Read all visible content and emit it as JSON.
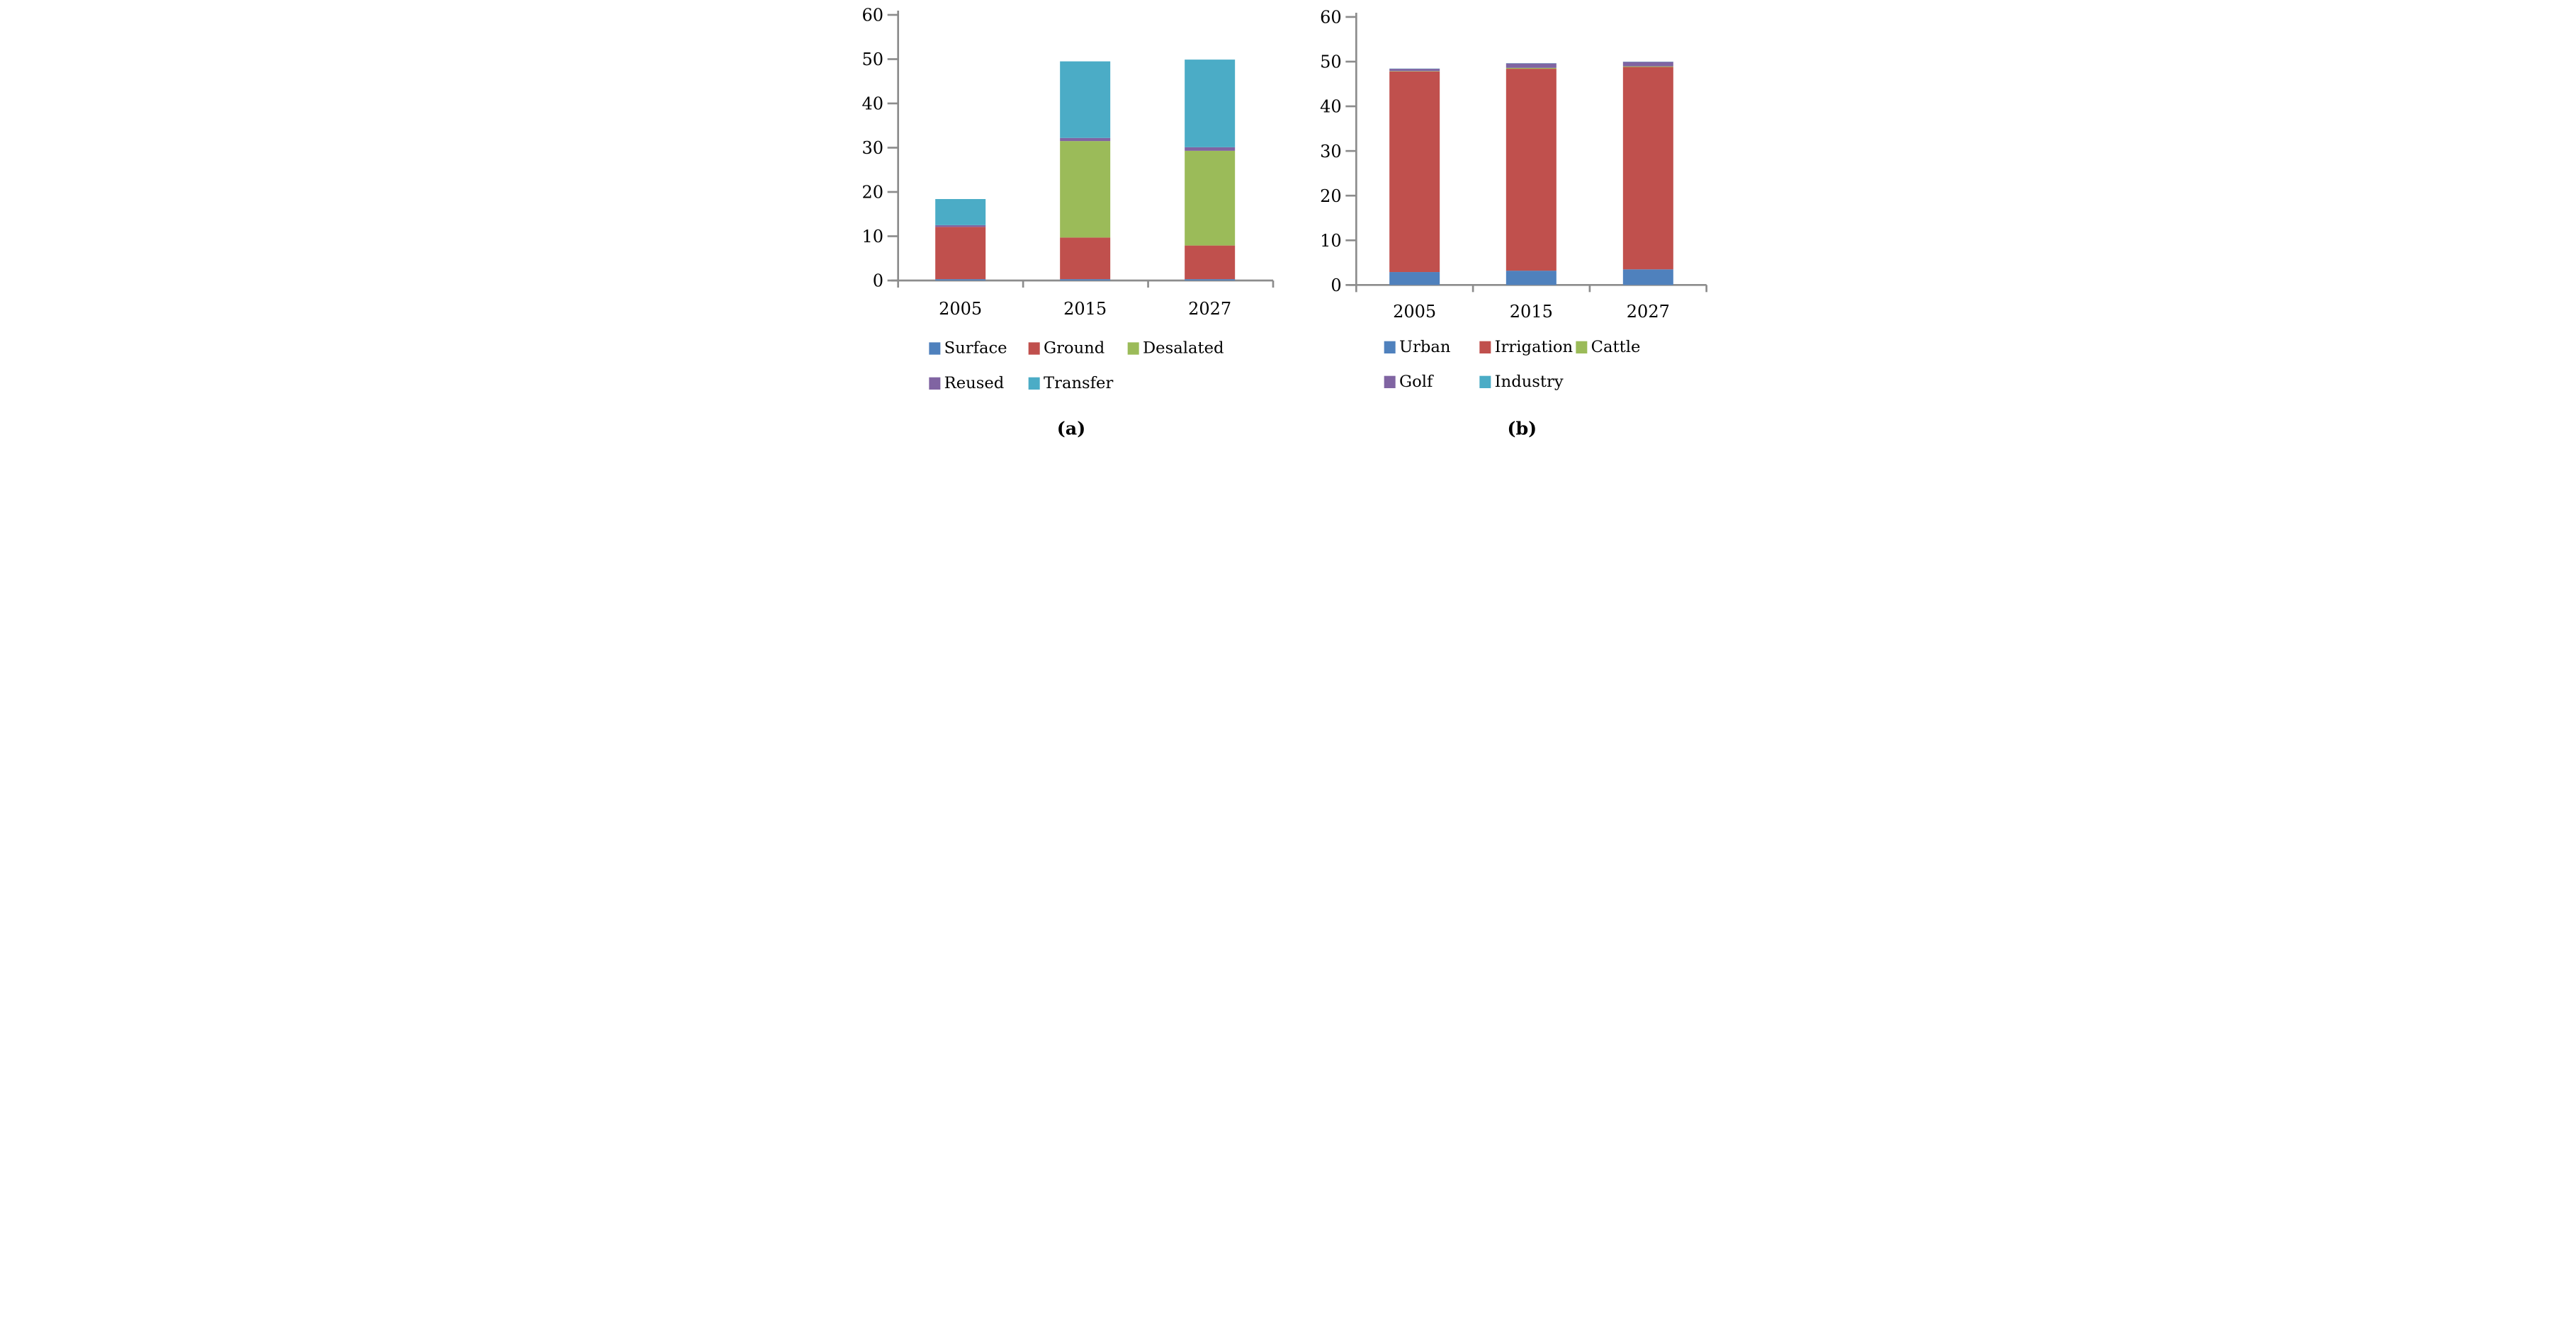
{
  "figure": {
    "background": "#ffffff",
    "axis_color": "#8C8C8C",
    "text_color": "#000000",
    "caption_a": "(a)",
    "caption_b": "(b)"
  },
  "chart_data": [
    {
      "id": "a",
      "type": "bar",
      "stacked": true,
      "caption": "(a)",
      "categories": [
        "2005",
        "2015",
        "2027"
      ],
      "series": [
        {
          "name": "Surface",
          "color": "#4F81BD",
          "values": [
            0.3,
            0.3,
            0.3
          ]
        },
        {
          "name": "Ground",
          "color": "#C0504D",
          "values": [
            11.8,
            9.4,
            7.6
          ]
        },
        {
          "name": "Desalated",
          "color": "#9BBB59",
          "values": [
            0,
            21.8,
            21.4
          ]
        },
        {
          "name": "Reused",
          "color": "#8064A2",
          "values": [
            0.4,
            0.7,
            0.8
          ]
        },
        {
          "name": "Transfer",
          "color": "#4BACC6",
          "values": [
            5.9,
            17.3,
            19.8
          ]
        }
      ],
      "totals": [
        18.4,
        49.5,
        49.9
      ],
      "ylim": [
        0,
        60
      ],
      "ytick_step": 10,
      "yticks": [
        0,
        10,
        20,
        30,
        40,
        50,
        60
      ],
      "grid": false,
      "legend_position": "bottom",
      "legend_rows": [
        [
          "Surface",
          "Ground",
          "Desalated"
        ],
        [
          "Reused",
          "Transfer"
        ]
      ]
    },
    {
      "id": "b",
      "type": "bar",
      "stacked": true,
      "caption": "(b)",
      "categories": [
        "2005",
        "2015",
        "2027"
      ],
      "series": [
        {
          "name": "Urban",
          "color": "#4F81BD",
          "values": [
            2.9,
            3.2,
            3.5
          ]
        },
        {
          "name": "Irrigation",
          "color": "#C0504D",
          "values": [
            44.9,
            45.2,
            45.3
          ]
        },
        {
          "name": "Cattle",
          "color": "#9BBB59",
          "values": [
            0.1,
            0.2,
            0.15
          ]
        },
        {
          "name": "Golf",
          "color": "#8064A2",
          "values": [
            0.5,
            1.0,
            1.0
          ]
        },
        {
          "name": "Industry",
          "color": "#4BACC6",
          "values": [
            0.05,
            0.05,
            0.05
          ]
        }
      ],
      "totals": [
        48.4,
        49.6,
        50.0
      ],
      "ylim": [
        0,
        60
      ],
      "ytick_step": 10,
      "yticks": [
        0,
        10,
        20,
        30,
        40,
        50,
        60
      ],
      "grid": false,
      "legend_position": "bottom",
      "legend_rows": [
        [
          "Urban",
          "Irrigation",
          "Cattle"
        ],
        [
          "Golf",
          "Industry"
        ]
      ]
    }
  ]
}
